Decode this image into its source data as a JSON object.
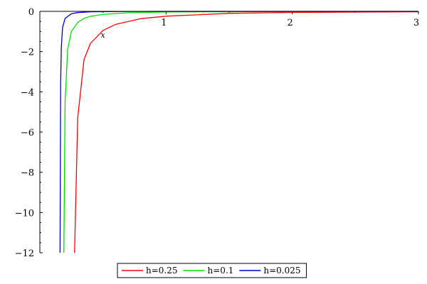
{
  "chart_data": {
    "type": "line",
    "xlabel": "x",
    "ylabel": "",
    "xlim": [
      0,
      3
    ],
    "ylim": [
      -12,
      0
    ],
    "x_ticks": [
      1,
      2,
      3
    ],
    "x_tick_labels": [
      "1",
      "2",
      "3"
    ],
    "y_ticks": [
      0,
      -2,
      -4,
      -6,
      -8,
      -10,
      -12
    ],
    "y_tick_labels": [
      "0",
      "−2",
      "−4",
      "−6",
      "−8",
      "−10",
      "−12"
    ],
    "grid": false,
    "legend_position": "bottom-center",
    "series": [
      {
        "name": "h=0.25",
        "color": "#ff0000",
        "x": [
          0.275,
          0.3,
          0.35,
          0.4,
          0.5,
          0.6,
          0.8,
          1.0,
          1.5,
          2.0,
          3.0
        ],
        "y": [
          -12.0,
          -5.3,
          -2.4,
          -1.6,
          -0.95,
          -0.65,
          -0.36,
          -0.24,
          -0.1,
          -0.05,
          -0.02
        ]
      },
      {
        "name": "h=0.1",
        "color": "#00e000",
        "x": [
          0.19,
          0.2,
          0.22,
          0.25,
          0.3,
          0.35,
          0.4,
          0.5,
          0.7,
          1.0,
          2.0,
          3.0
        ],
        "y": [
          -12.0,
          -4.5,
          -1.9,
          -1.0,
          -0.55,
          -0.35,
          -0.25,
          -0.15,
          -0.07,
          -0.03,
          -0.01,
          -0.005
        ]
      },
      {
        "name": "h=0.025",
        "color": "#0000cc",
        "x": [
          0.16,
          0.165,
          0.17,
          0.18,
          0.2,
          0.25,
          0.3,
          0.4,
          0.6,
          1.0,
          2.0,
          3.0
        ],
        "y": [
          -12.0,
          -3.5,
          -1.8,
          -0.8,
          -0.35,
          -0.12,
          -0.06,
          -0.02,
          -0.01,
          0.0,
          0.0,
          0.0
        ]
      }
    ]
  }
}
